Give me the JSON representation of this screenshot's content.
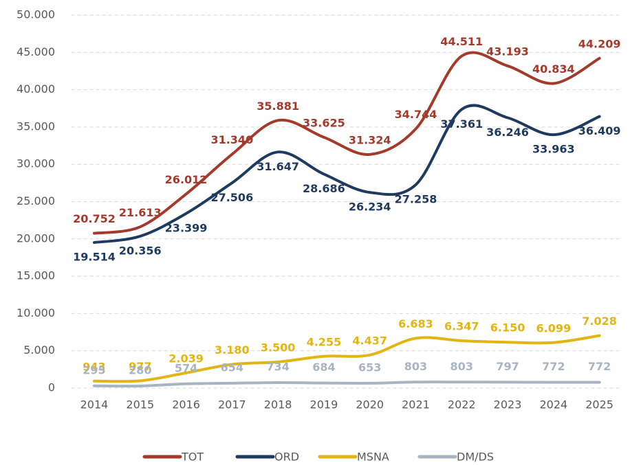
{
  "chart_data": {
    "type": "line",
    "categories": [
      "2014",
      "2015",
      "2016",
      "2017",
      "2018",
      "2019",
      "2020",
      "2021",
      "2022",
      "2023",
      "2024",
      "2025"
    ],
    "ylim": [
      0,
      50000
    ],
    "yticks": [
      0,
      {
        "value": 5000,
        "label": "5.000"
      },
      {
        "value": 10000,
        "label": "10.000"
      },
      {
        "value": 15000,
        "label": "15.000"
      },
      {
        "value": 20000,
        "label": "20.000"
      },
      {
        "value": 25000,
        "label": "25.000"
      },
      {
        "value": 30000,
        "label": "30.000"
      },
      {
        "value": 35000,
        "label": "35.000"
      },
      {
        "value": 40000,
        "label": "40.000"
      },
      {
        "value": 45000,
        "label": "45.000"
      },
      {
        "value": 50000,
        "label": "50.000"
      }
    ],
    "grid": true,
    "legend": "bottom",
    "series": [
      {
        "name": "TOT",
        "color": "#a33a2c",
        "values": [
          20752,
          21613,
          26012,
          31340,
          35881,
          33625,
          31324,
          34744,
          44511,
          43193,
          40834,
          44209
        ],
        "value_labels": [
          "20.752",
          "21.613",
          "26.012",
          "31.340",
          "35.881",
          "33.625",
          "31.324",
          "34.744",
          "44.511",
          "43.193",
          "40.834",
          "44.209"
        ]
      },
      {
        "name": "ORD",
        "color": "#1f3a5f",
        "values": [
          19514,
          20356,
          23399,
          27506,
          31647,
          28686,
          26234,
          27258,
          37361,
          36246,
          33963,
          36409
        ],
        "value_labels": [
          "19.514",
          "20.356",
          "23.399",
          "27.506",
          "31.647",
          "28.686",
          "26.234",
          "27.258",
          "37.361",
          "36.246",
          "33.963",
          "36.409"
        ]
      },
      {
        "name": "MSNA",
        "color": "#e3b512",
        "values": [
          943,
          977,
          2039,
          3180,
          3500,
          4255,
          4437,
          6683,
          6347,
          6150,
          6099,
          7028
        ],
        "value_labels": [
          "943",
          "977",
          "2.039",
          "3.180",
          "3.500",
          "4.255",
          "4.437",
          "6.683",
          "6.347",
          "6.150",
          "6.099",
          "7.028"
        ]
      },
      {
        "name": "DM/DS",
        "color": "#a9b4c2",
        "values": [
          295,
          280,
          574,
          654,
          734,
          684,
          653,
          803,
          803,
          797,
          772,
          772
        ],
        "value_labels": [
          "295",
          "280",
          "574",
          "654",
          "734",
          "684",
          "653",
          "803",
          "803",
          "797",
          "772",
          "772"
        ]
      }
    ]
  }
}
